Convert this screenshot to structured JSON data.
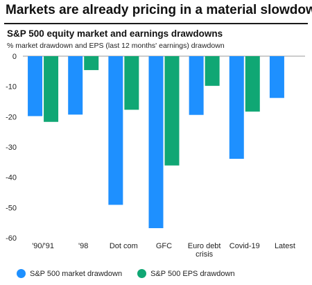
{
  "headline": "Markets are already pricing in a material slowdown",
  "chart_data": {
    "type": "bar",
    "title": "S&P 500 equity market and earnings drawdowns",
    "subtitle": "% market drawdown and EPS (last 12 months' earnings) drawdown",
    "categories": [
      [
        "'90/'91"
      ],
      [
        "'98"
      ],
      [
        "Dot com"
      ],
      [
        "GFC"
      ],
      [
        "Euro debt",
        "crisis"
      ],
      [
        "Covid-19"
      ],
      [
        "Latest"
      ]
    ],
    "series": [
      {
        "name": "S&P 500 market drawdown",
        "color": "#1e90ff",
        "values": [
          -19.8,
          -19.3,
          -49.1,
          -56.8,
          -19.4,
          -33.9,
          -13.8
        ]
      },
      {
        "name": "S&P 500 EPS drawdown",
        "color": "#10a774",
        "values": [
          -21.7,
          -4.6,
          -17.7,
          -36.1,
          -9.8,
          -18.3,
          null
        ]
      }
    ],
    "yticks": [
      "0",
      "-10",
      "-20",
      "-30",
      "-40",
      "-50",
      "-60"
    ],
    "ylim": [
      -60,
      0
    ],
    "grid": false,
    "legend_position": "bottom"
  }
}
